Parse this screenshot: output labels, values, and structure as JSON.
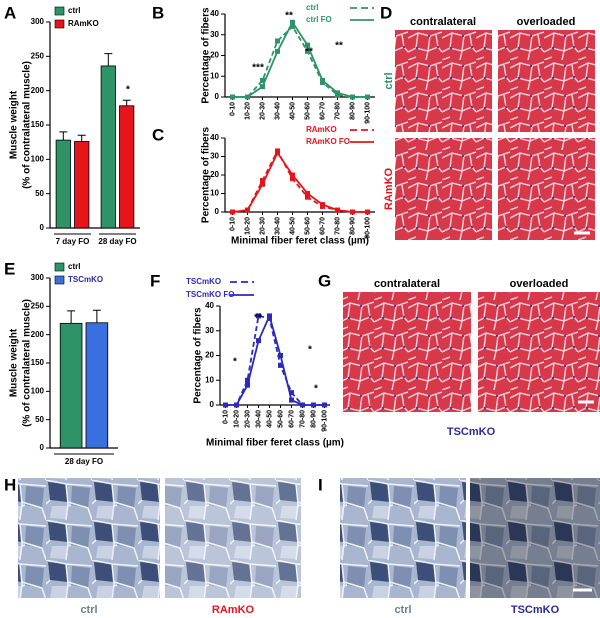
{
  "panels": {
    "letters": [
      "A",
      "B",
      "C",
      "D",
      "E",
      "F",
      "G",
      "H",
      "I"
    ]
  },
  "images": {
    "D": {
      "columns": [
        "contralateral",
        "overloaded"
      ],
      "rows": [
        "ctrl",
        "RAmKO"
      ]
    },
    "G": {
      "columns": [
        "contralateral",
        "overloaded"
      ],
      "caption": "TSCmKO"
    },
    "H": {
      "captions": [
        "ctrl",
        "RAmKO"
      ]
    },
    "I": {
      "captions": [
        "ctrl",
        "TSCmKO"
      ]
    }
  },
  "chart_data": [
    {
      "type": "bar",
      "ylabel": [
        "Muscle weight",
        "(% of contralateral muscle)"
      ],
      "categories": [
        "7 day FO",
        "28 day FO"
      ],
      "series": [
        {
          "name": "ctrl",
          "color": "#2e9468",
          "values": [
            128,
            236
          ],
          "errors": [
            12,
            18
          ]
        },
        {
          "name": "RAmKO",
          "color": "#e8141c",
          "values": [
            126,
            178
          ],
          "errors": [
            9,
            8
          ]
        }
      ],
      "ylim": [
        0,
        300
      ],
      "yticks": [
        0,
        50,
        100,
        150,
        200,
        250,
        300
      ],
      "annotations": [
        "*"
      ]
    },
    {
      "type": "line",
      "ylabel": "Percentage of fibers",
      "categories": [
        "0-10",
        "10-20",
        "20-30",
        "30-40",
        "40-50",
        "50-60",
        "60-70",
        "70-80",
        "80-90",
        "90-100"
      ],
      "series": [
        {
          "name": "ctrl",
          "color": "#2e9468",
          "linestyle": "dashed",
          "values": [
            0,
            0,
            8,
            27,
            34,
            22,
            7,
            1,
            0,
            0
          ]
        },
        {
          "name": "ctrl FO",
          "color": "#2e9468",
          "linestyle": "solid",
          "values": [
            0,
            0,
            5,
            22,
            36,
            25,
            8,
            2,
            0,
            0
          ]
        }
      ],
      "ylim": [
        0,
        40
      ],
      "yticks": [
        0,
        10,
        20,
        30,
        40
      ],
      "annotations": [
        "***",
        "**",
        "**",
        "**"
      ]
    },
    {
      "type": "line",
      "ylabel": "Percentage of fibers",
      "xlabel": "Minimal fiber feret class (µm)",
      "categories": [
        "0-10",
        "10-20",
        "20-30",
        "30-40",
        "40-50",
        "50-60",
        "60-70",
        "70-80",
        "80-90",
        "90-100"
      ],
      "series": [
        {
          "name": "RAmKO",
          "color": "#e8141c",
          "linestyle": "dashed",
          "values": [
            0,
            1,
            17,
            33,
            18,
            8,
            3,
            1,
            0,
            0
          ]
        },
        {
          "name": "RAmKO FO",
          "color": "#e8141c",
          "linestyle": "solid",
          "values": [
            0,
            1,
            15,
            32,
            20,
            10,
            4,
            1,
            0,
            0
          ]
        }
      ],
      "ylim": [
        0,
        40
      ],
      "yticks": [
        0,
        10,
        20,
        30,
        40
      ]
    },
    {
      "type": "bar",
      "ylabel": [
        "Muscle weight",
        "(% of contralateral muscle)"
      ],
      "categories": [
        "28 day FO"
      ],
      "series": [
        {
          "name": "ctrl",
          "color": "#2e9468",
          "values": [
            220
          ],
          "errors": [
            22
          ]
        },
        {
          "name": "TSCmKO",
          "color": "#3a6fe0",
          "values": [
            221
          ],
          "errors": [
            22
          ]
        }
      ],
      "ylim": [
        0,
        300
      ],
      "yticks": [
        0,
        50,
        100,
        150,
        200,
        250,
        300
      ]
    },
    {
      "type": "line",
      "ylabel": "Percentage of fibers",
      "xlabel": "Minimal fiber feret class (µm)",
      "categories": [
        "0-10",
        "10-20",
        "20-30",
        "30-40",
        "40-50",
        "50-60",
        "60-70",
        "70-80",
        "80-90",
        "90-100"
      ],
      "series": [
        {
          "name": "TSCmKO",
          "color": "#2a2ac0",
          "linestyle": "dashed",
          "values": [
            0,
            0,
            10,
            36,
            35,
            16,
            5,
            0,
            0,
            0
          ]
        },
        {
          "name": "TSCmKO FO",
          "color": "#2a2ac0",
          "linestyle": "solid",
          "values": [
            0,
            0,
            8,
            26,
            36,
            20,
            2,
            0,
            0,
            0
          ]
        }
      ],
      "ylim": [
        0,
        40
      ],
      "yticks": [
        0,
        10,
        20,
        30,
        40
      ],
      "annotations": [
        "*",
        "**",
        "*",
        "*"
      ]
    }
  ]
}
